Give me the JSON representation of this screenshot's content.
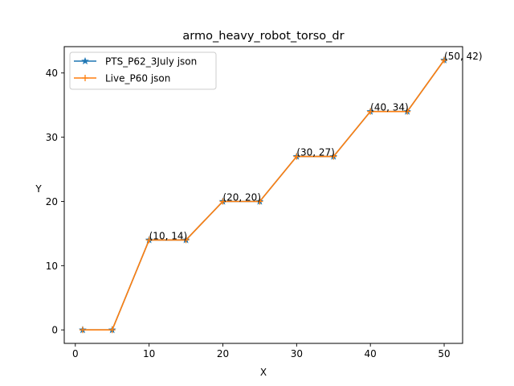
{
  "chart_data": {
    "type": "line",
    "title": "armo_heavy_robot_torso_dr",
    "xlabel": "X",
    "ylabel": "Y",
    "xlim": [
      -1.5,
      52.5
    ],
    "ylim": [
      -2.1,
      44.1
    ],
    "xticks": [
      0,
      10,
      20,
      30,
      40,
      50
    ],
    "yticks": [
      0,
      10,
      20,
      30,
      40
    ],
    "legend_position": "top-left",
    "grid": false,
    "series": [
      {
        "name": "PTS_P62_3July json",
        "color": "#1f77b4",
        "marker": "star",
        "x": [
          1,
          5,
          10,
          15,
          20,
          25,
          30,
          35,
          40,
          45,
          50
        ],
        "y": [
          0,
          0,
          14,
          14,
          20,
          20,
          27,
          27,
          34,
          34,
          42
        ]
      },
      {
        "name": "Live_P60 json",
        "color": "#ff7f0e",
        "marker": "plus",
        "x": [
          1,
          5,
          10,
          15,
          20,
          25,
          30,
          35,
          40,
          45,
          50
        ],
        "y": [
          0,
          0,
          14,
          14,
          20,
          20,
          27,
          27,
          34,
          34,
          42
        ]
      }
    ],
    "annotations": [
      {
        "x": 10,
        "y": 14,
        "text": "(10, 14)"
      },
      {
        "x": 20,
        "y": 20,
        "text": "(20, 20)"
      },
      {
        "x": 30,
        "y": 27,
        "text": "(30, 27)"
      },
      {
        "x": 40,
        "y": 34,
        "text": "(40, 34)"
      },
      {
        "x": 50,
        "y": 42,
        "text": "(50, 42)"
      }
    ]
  }
}
